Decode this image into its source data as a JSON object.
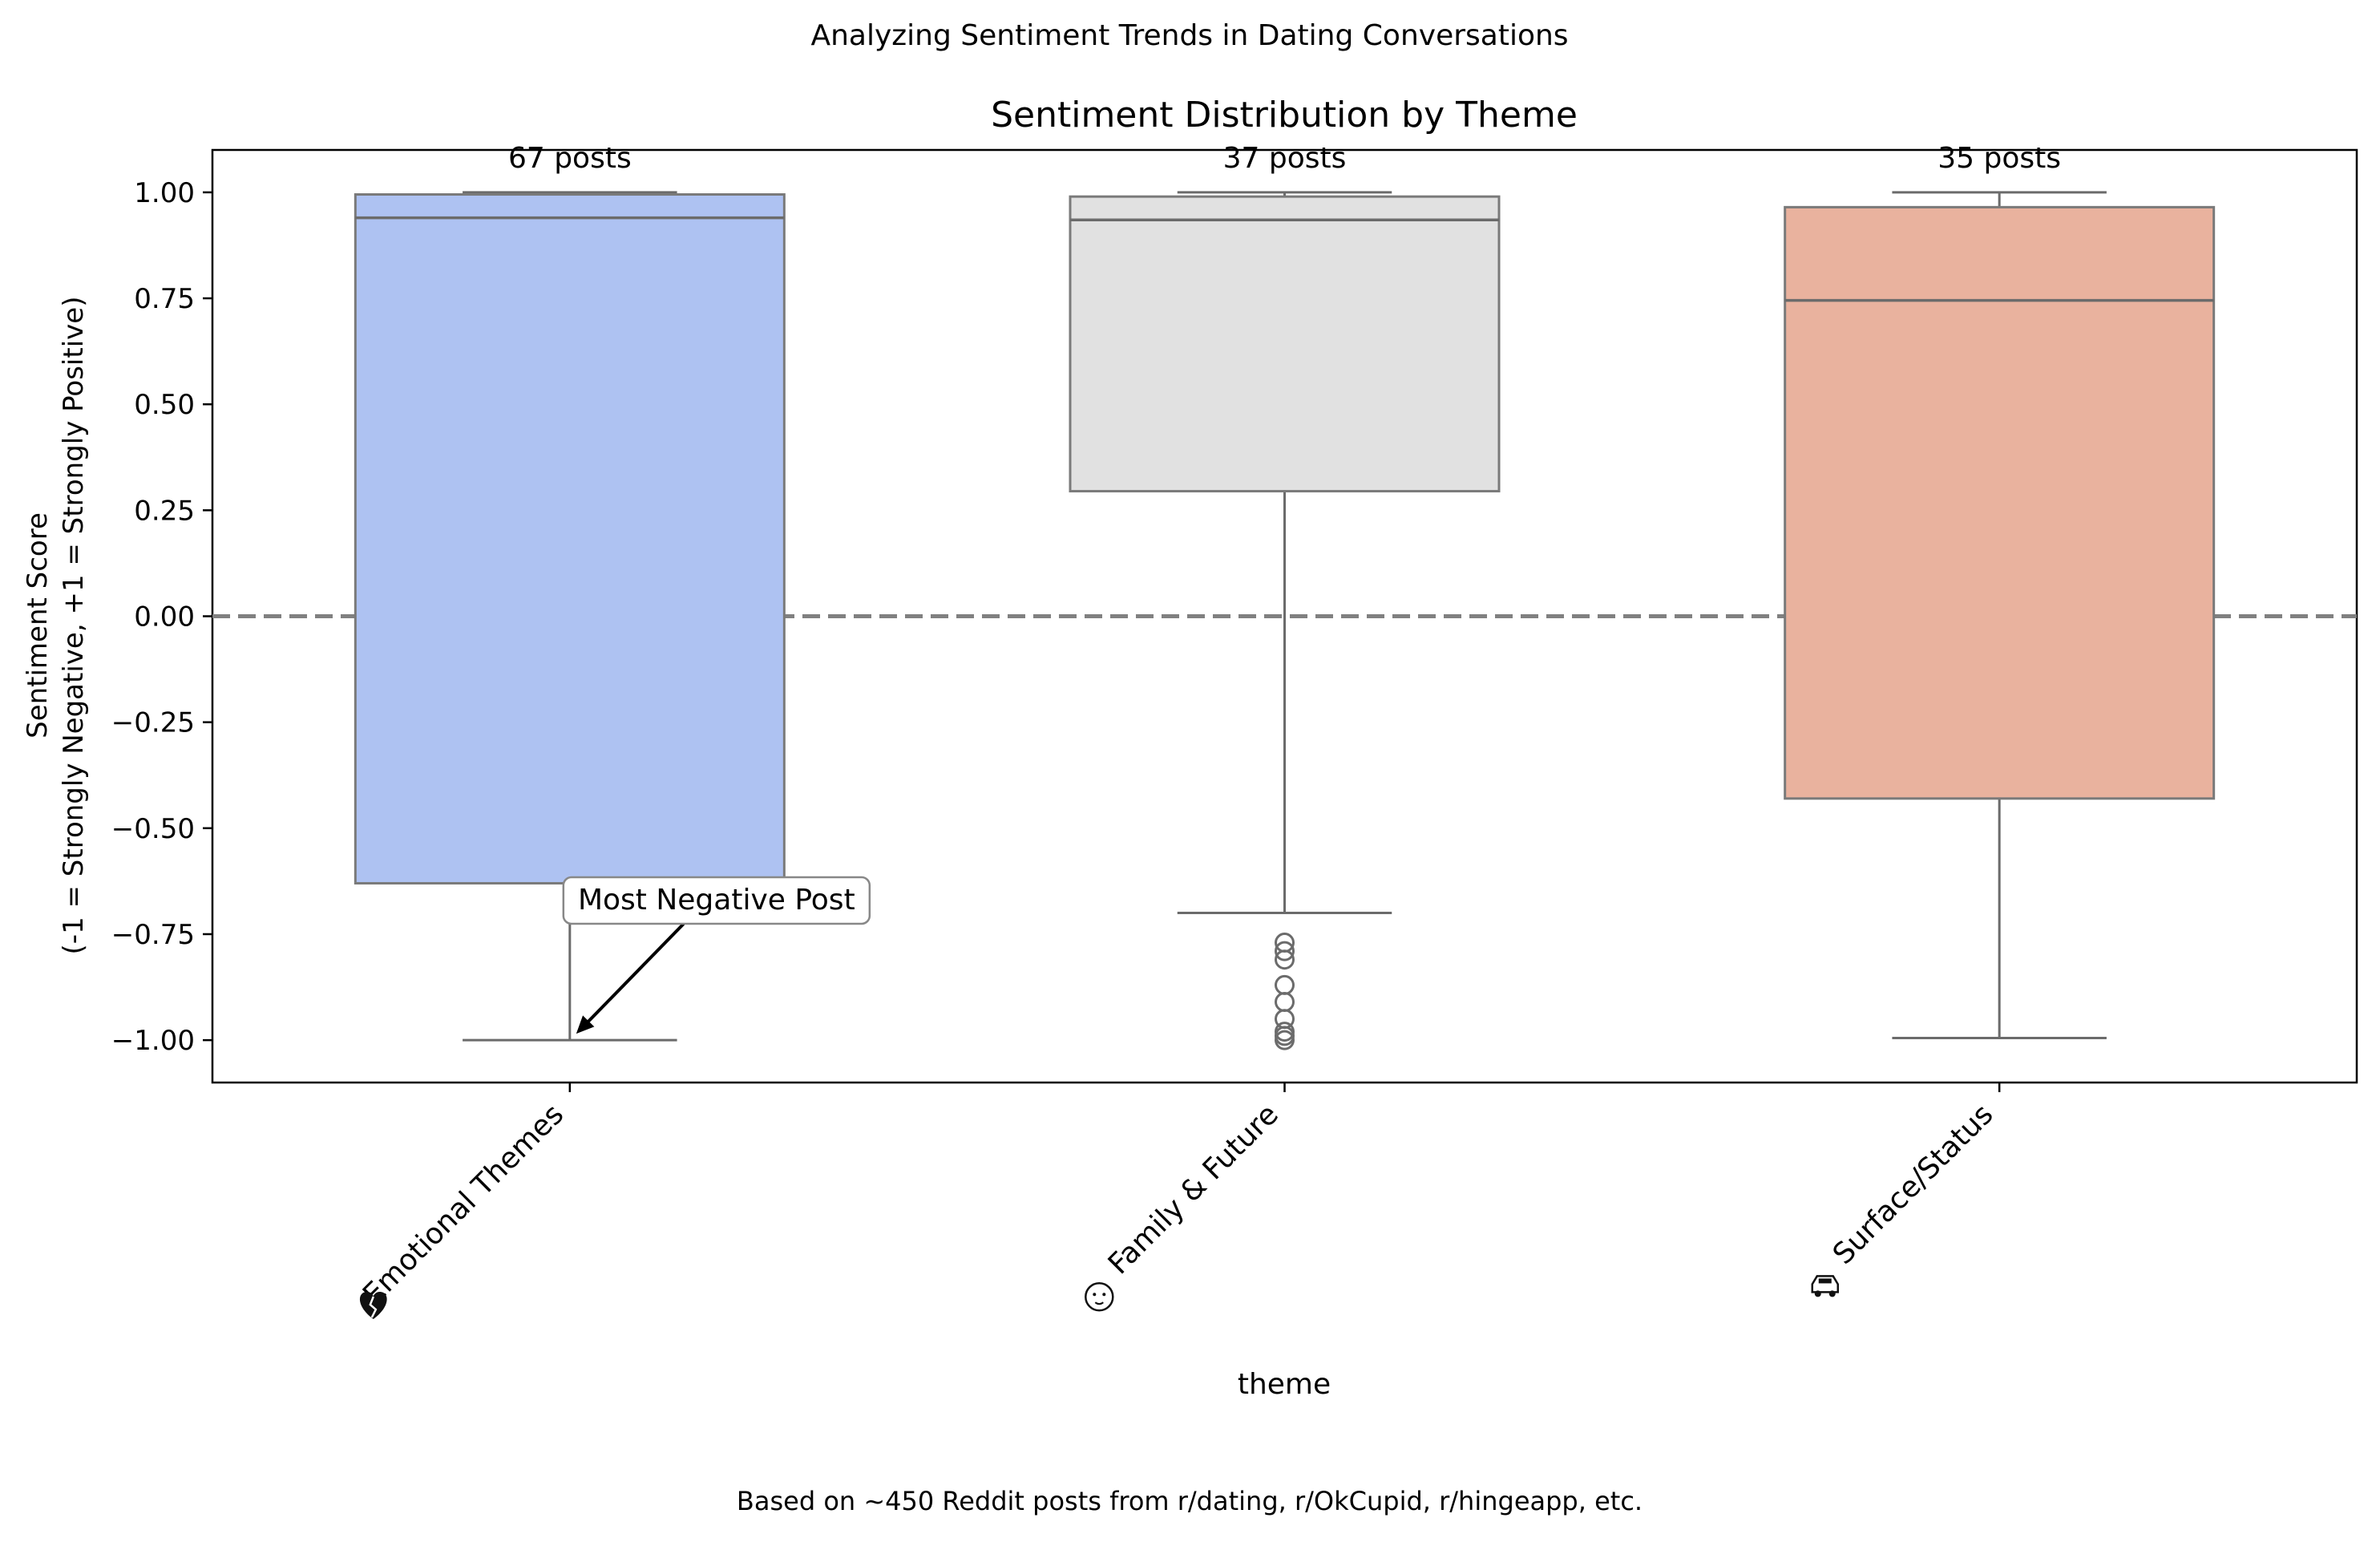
{
  "figure": {
    "suptitle": "Analyzing Sentiment Trends in Dating Conversations",
    "footnote": "Based on ~450 Reddit posts from r/dating, r/OkCupid, r/hingeapp, etc."
  },
  "chart_data": {
    "type": "box",
    "title": "Sentiment Distribution by Theme",
    "xlabel": "theme",
    "ylabel_lines": [
      "Sentiment Score",
      "(-1 = Strongly Negative, +1 = Strongly Positive)"
    ],
    "ylim": [
      -1.1,
      1.1
    ],
    "yticks": [
      1.0,
      0.75,
      0.5,
      0.25,
      0.0,
      -0.25,
      -0.5,
      -0.75,
      -1.0
    ],
    "ytick_labels": [
      "1.00",
      "0.75",
      "0.50",
      "0.25",
      "0.00",
      "−0.25",
      "−0.50",
      "−0.75",
      "−1.00"
    ],
    "reference_line": {
      "y": 0.0,
      "style": "dashed",
      "color": "#808080"
    },
    "grid": false,
    "categories": [
      {
        "label": "Emotional Themes",
        "icon": "broken-heart-icon",
        "color": "#aec2f2",
        "count_label": "67 posts",
        "whisker_low": -1.0,
        "q1": -0.63,
        "median": 0.94,
        "q3": 0.995,
        "whisker_high": 1.0,
        "outliers": []
      },
      {
        "label": "Family & Future",
        "icon": "baby-face-icon",
        "color": "#e1e1e1",
        "count_label": "37 posts",
        "whisker_low": -0.7,
        "q1": 0.295,
        "median": 0.935,
        "q3": 0.99,
        "whisker_high": 1.0,
        "outliers": [
          -0.77,
          -0.79,
          -0.81,
          -0.87,
          -0.91,
          -0.95,
          -0.98,
          -0.99,
          -1.0
        ]
      },
      {
        "label": "Surface/Status",
        "icon": "car-icon",
        "color": "#e9b29e",
        "count_label": "35 posts",
        "whisker_low": -0.995,
        "q1": -0.43,
        "median": 0.745,
        "q3": 0.965,
        "whisker_high": 1.0,
        "outliers": []
      }
    ],
    "annotation": {
      "text": "Most Negative Post",
      "category_index": 0,
      "target_y": -1.0
    }
  }
}
